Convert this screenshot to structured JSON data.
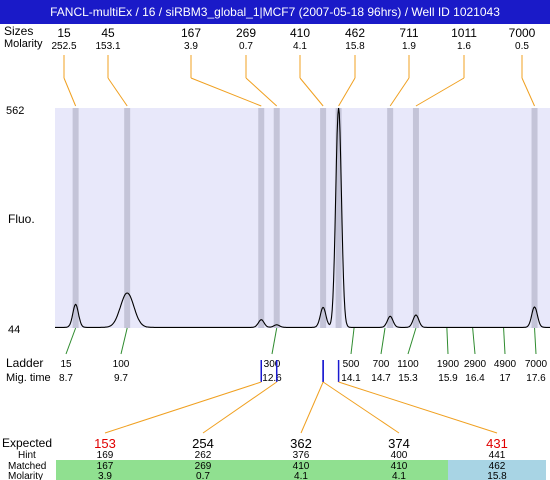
{
  "title": "FANCL-multiEx / 16 / siRBM3_global_1|MCF7 (2007-05-18 96hrs) / Well ID 1021043",
  "labels": {
    "sizes": "Sizes",
    "molarity": "Molarity",
    "fluo": "Fluo.",
    "ladder": "Ladder",
    "mig_time": "Mig. time",
    "expected": "Expected",
    "hint": "Hint",
    "matched": "Matched",
    "molarity_bottom": "Molarity"
  },
  "colors": {
    "title_bg": "#1a1ac8",
    "plot_bg": "#e8e8fa",
    "band": "#c4c4d8",
    "connector": "#f0a020",
    "ladder_tick": "#2e8b2e",
    "mig_tick": "#1a1ad0",
    "highlight_red": "#e00000",
    "matched_green": "#90e090",
    "matched_blue": "#a8d4e4"
  },
  "chart_data": {
    "type": "line",
    "ylim": [
      44,
      562
    ],
    "y_ticks": [
      "562",
      "44"
    ],
    "peaks": [
      {
        "size": "15",
        "molarity": "252.5",
        "time": 8.7,
        "height": 98
      },
      {
        "size": "45",
        "molarity": "153.1",
        "time": 9.7,
        "height": 125
      },
      {
        "size": "167",
        "molarity": "3.9",
        "time": 12.3,
        "height": 62
      },
      {
        "size": "269",
        "molarity": "0.7",
        "time": 12.6,
        "height": 50
      },
      {
        "size": "410",
        "molarity": "4.1",
        "time": 13.5,
        "height": 91
      },
      {
        "size": "462",
        "molarity": "15.8",
        "time": 13.8,
        "height": 562
      },
      {
        "size": "711",
        "molarity": "1.9",
        "time": 14.8,
        "height": 70
      },
      {
        "size": "1011",
        "molarity": "1.6",
        "time": 15.3,
        "height": 73
      },
      {
        "size": "7000",
        "molarity": "0.5",
        "time": 17.6,
        "height": 92
      }
    ],
    "ladder": [
      {
        "size": "15",
        "time": "8.7"
      },
      {
        "size": "100",
        "time": "9.7"
      },
      {
        "size": "300",
        "time": "12.6"
      },
      {
        "size": "500",
        "time": "14.1"
      },
      {
        "size": "700",
        "time": "14.7"
      },
      {
        "size": "1100",
        "time": "15.3"
      },
      {
        "size": "1900",
        "time": "15.9"
      },
      {
        "size": "2900",
        "time": "16.4"
      },
      {
        "size": "4900",
        "time": "17"
      },
      {
        "size": "7000",
        "time": "17.6"
      }
    ],
    "expected": [
      {
        "expected": "153",
        "hint": "169",
        "matched": "167",
        "molarity": "3.9",
        "highlight": true,
        "status": "green"
      },
      {
        "expected": "254",
        "hint": "262",
        "matched": "269",
        "molarity": "0.7",
        "highlight": false,
        "status": "green"
      },
      {
        "expected": "362",
        "hint": "376",
        "matched": "410",
        "molarity": "4.1",
        "highlight": false,
        "status": "green"
      },
      {
        "expected": "374",
        "hint": "400",
        "matched": "410",
        "molarity": "4.1",
        "highlight": false,
        "status": "green"
      },
      {
        "expected": "431",
        "hint": "441",
        "matched": "462",
        "molarity": "15.8",
        "highlight": true,
        "status": "blue"
      }
    ]
  }
}
